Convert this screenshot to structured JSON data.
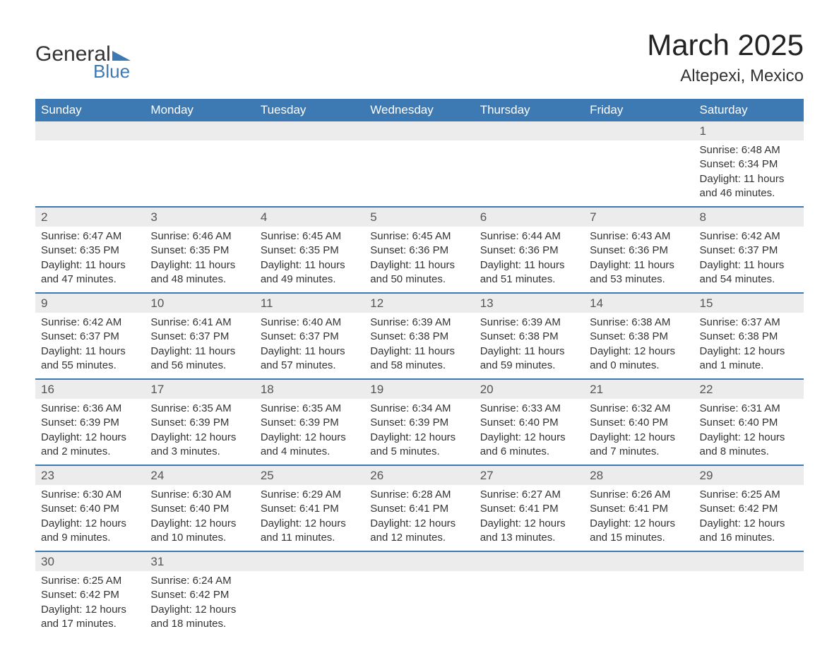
{
  "logo": {
    "text1": "General",
    "text2": "Blue",
    "triangle_color": "#3d79b3"
  },
  "title": "March 2025",
  "location": "Altepexi, Mexico",
  "colors": {
    "header_bg": "#3d79b3",
    "header_text": "#ffffff",
    "daynum_bg": "#ececec",
    "row_border": "#3d79b3",
    "text": "#333333"
  },
  "typography": {
    "title_fontsize": 42,
    "location_fontsize": 24,
    "header_fontsize": 17,
    "daynum_fontsize": 17,
    "detail_fontsize": 15
  },
  "weekdays": [
    "Sunday",
    "Monday",
    "Tuesday",
    "Wednesday",
    "Thursday",
    "Friday",
    "Saturday"
  ],
  "weeks": [
    [
      null,
      null,
      null,
      null,
      null,
      null,
      {
        "day": "1",
        "sunrise": "Sunrise: 6:48 AM",
        "sunset": "Sunset: 6:34 PM",
        "daylight1": "Daylight: 11 hours",
        "daylight2": "and 46 minutes."
      }
    ],
    [
      {
        "day": "2",
        "sunrise": "Sunrise: 6:47 AM",
        "sunset": "Sunset: 6:35 PM",
        "daylight1": "Daylight: 11 hours",
        "daylight2": "and 47 minutes."
      },
      {
        "day": "3",
        "sunrise": "Sunrise: 6:46 AM",
        "sunset": "Sunset: 6:35 PM",
        "daylight1": "Daylight: 11 hours",
        "daylight2": "and 48 minutes."
      },
      {
        "day": "4",
        "sunrise": "Sunrise: 6:45 AM",
        "sunset": "Sunset: 6:35 PM",
        "daylight1": "Daylight: 11 hours",
        "daylight2": "and 49 minutes."
      },
      {
        "day": "5",
        "sunrise": "Sunrise: 6:45 AM",
        "sunset": "Sunset: 6:36 PM",
        "daylight1": "Daylight: 11 hours",
        "daylight2": "and 50 minutes."
      },
      {
        "day": "6",
        "sunrise": "Sunrise: 6:44 AM",
        "sunset": "Sunset: 6:36 PM",
        "daylight1": "Daylight: 11 hours",
        "daylight2": "and 51 minutes."
      },
      {
        "day": "7",
        "sunrise": "Sunrise: 6:43 AM",
        "sunset": "Sunset: 6:36 PM",
        "daylight1": "Daylight: 11 hours",
        "daylight2": "and 53 minutes."
      },
      {
        "day": "8",
        "sunrise": "Sunrise: 6:42 AM",
        "sunset": "Sunset: 6:37 PM",
        "daylight1": "Daylight: 11 hours",
        "daylight2": "and 54 minutes."
      }
    ],
    [
      {
        "day": "9",
        "sunrise": "Sunrise: 6:42 AM",
        "sunset": "Sunset: 6:37 PM",
        "daylight1": "Daylight: 11 hours",
        "daylight2": "and 55 minutes."
      },
      {
        "day": "10",
        "sunrise": "Sunrise: 6:41 AM",
        "sunset": "Sunset: 6:37 PM",
        "daylight1": "Daylight: 11 hours",
        "daylight2": "and 56 minutes."
      },
      {
        "day": "11",
        "sunrise": "Sunrise: 6:40 AM",
        "sunset": "Sunset: 6:37 PM",
        "daylight1": "Daylight: 11 hours",
        "daylight2": "and 57 minutes."
      },
      {
        "day": "12",
        "sunrise": "Sunrise: 6:39 AM",
        "sunset": "Sunset: 6:38 PM",
        "daylight1": "Daylight: 11 hours",
        "daylight2": "and 58 minutes."
      },
      {
        "day": "13",
        "sunrise": "Sunrise: 6:39 AM",
        "sunset": "Sunset: 6:38 PM",
        "daylight1": "Daylight: 11 hours",
        "daylight2": "and 59 minutes."
      },
      {
        "day": "14",
        "sunrise": "Sunrise: 6:38 AM",
        "sunset": "Sunset: 6:38 PM",
        "daylight1": "Daylight: 12 hours",
        "daylight2": "and 0 minutes."
      },
      {
        "day": "15",
        "sunrise": "Sunrise: 6:37 AM",
        "sunset": "Sunset: 6:38 PM",
        "daylight1": "Daylight: 12 hours",
        "daylight2": "and 1 minute."
      }
    ],
    [
      {
        "day": "16",
        "sunrise": "Sunrise: 6:36 AM",
        "sunset": "Sunset: 6:39 PM",
        "daylight1": "Daylight: 12 hours",
        "daylight2": "and 2 minutes."
      },
      {
        "day": "17",
        "sunrise": "Sunrise: 6:35 AM",
        "sunset": "Sunset: 6:39 PM",
        "daylight1": "Daylight: 12 hours",
        "daylight2": "and 3 minutes."
      },
      {
        "day": "18",
        "sunrise": "Sunrise: 6:35 AM",
        "sunset": "Sunset: 6:39 PM",
        "daylight1": "Daylight: 12 hours",
        "daylight2": "and 4 minutes."
      },
      {
        "day": "19",
        "sunrise": "Sunrise: 6:34 AM",
        "sunset": "Sunset: 6:39 PM",
        "daylight1": "Daylight: 12 hours",
        "daylight2": "and 5 minutes."
      },
      {
        "day": "20",
        "sunrise": "Sunrise: 6:33 AM",
        "sunset": "Sunset: 6:40 PM",
        "daylight1": "Daylight: 12 hours",
        "daylight2": "and 6 minutes."
      },
      {
        "day": "21",
        "sunrise": "Sunrise: 6:32 AM",
        "sunset": "Sunset: 6:40 PM",
        "daylight1": "Daylight: 12 hours",
        "daylight2": "and 7 minutes."
      },
      {
        "day": "22",
        "sunrise": "Sunrise: 6:31 AM",
        "sunset": "Sunset: 6:40 PM",
        "daylight1": "Daylight: 12 hours",
        "daylight2": "and 8 minutes."
      }
    ],
    [
      {
        "day": "23",
        "sunrise": "Sunrise: 6:30 AM",
        "sunset": "Sunset: 6:40 PM",
        "daylight1": "Daylight: 12 hours",
        "daylight2": "and 9 minutes."
      },
      {
        "day": "24",
        "sunrise": "Sunrise: 6:30 AM",
        "sunset": "Sunset: 6:40 PM",
        "daylight1": "Daylight: 12 hours",
        "daylight2": "and 10 minutes."
      },
      {
        "day": "25",
        "sunrise": "Sunrise: 6:29 AM",
        "sunset": "Sunset: 6:41 PM",
        "daylight1": "Daylight: 12 hours",
        "daylight2": "and 11 minutes."
      },
      {
        "day": "26",
        "sunrise": "Sunrise: 6:28 AM",
        "sunset": "Sunset: 6:41 PM",
        "daylight1": "Daylight: 12 hours",
        "daylight2": "and 12 minutes."
      },
      {
        "day": "27",
        "sunrise": "Sunrise: 6:27 AM",
        "sunset": "Sunset: 6:41 PM",
        "daylight1": "Daylight: 12 hours",
        "daylight2": "and 13 minutes."
      },
      {
        "day": "28",
        "sunrise": "Sunrise: 6:26 AM",
        "sunset": "Sunset: 6:41 PM",
        "daylight1": "Daylight: 12 hours",
        "daylight2": "and 15 minutes."
      },
      {
        "day": "29",
        "sunrise": "Sunrise: 6:25 AM",
        "sunset": "Sunset: 6:42 PM",
        "daylight1": "Daylight: 12 hours",
        "daylight2": "and 16 minutes."
      }
    ],
    [
      {
        "day": "30",
        "sunrise": "Sunrise: 6:25 AM",
        "sunset": "Sunset: 6:42 PM",
        "daylight1": "Daylight: 12 hours",
        "daylight2": "and 17 minutes."
      },
      {
        "day": "31",
        "sunrise": "Sunrise: 6:24 AM",
        "sunset": "Sunset: 6:42 PM",
        "daylight1": "Daylight: 12 hours",
        "daylight2": "and 18 minutes."
      },
      null,
      null,
      null,
      null,
      null
    ]
  ]
}
